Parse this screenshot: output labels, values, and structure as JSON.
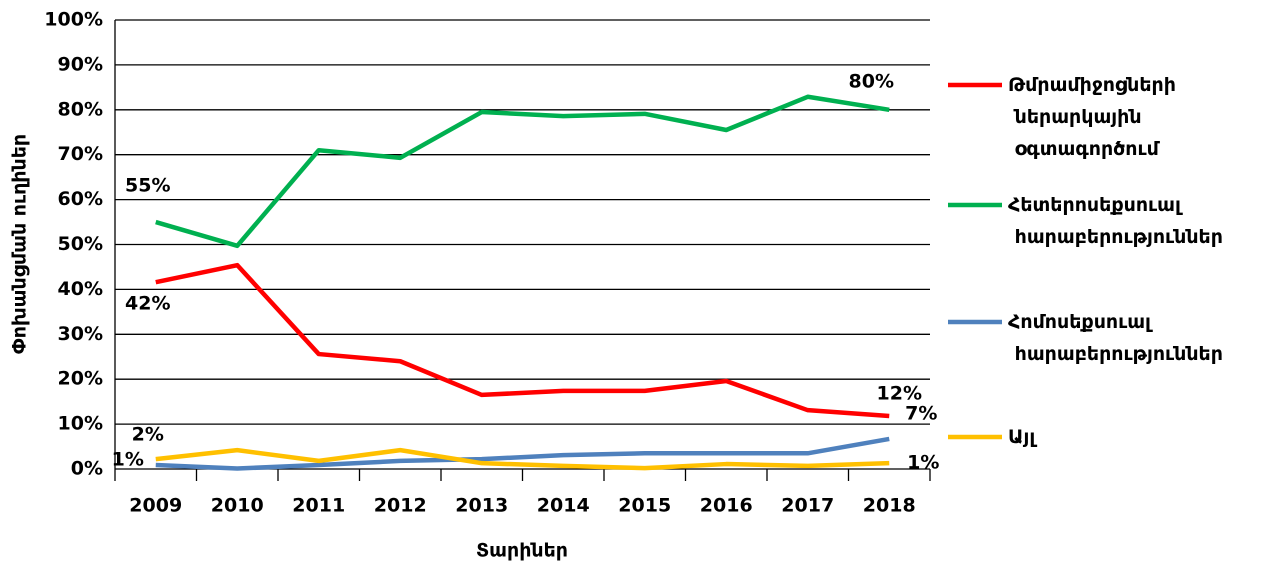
{
  "chart_data": {
    "type": "line",
    "x_label": "Տարիներ",
    "y_label": "Փոխանցման ուղիներ",
    "categories": [
      "2009",
      "2010",
      "2011",
      "2012",
      "2013",
      "2014",
      "2015",
      "2016",
      "2017",
      "2018"
    ],
    "series": [
      {
        "name": "Թմրամիջոցների ներարկային օգտագործում",
        "color": "#ff0000",
        "values": [
          41.6,
          45.4,
          25.6,
          24,
          16.5,
          17.4,
          17.4,
          19.6,
          13.1,
          11.8
        ],
        "value_labels": [
          "42%",
          null,
          null,
          null,
          null,
          null,
          null,
          null,
          null,
          "12%"
        ]
      },
      {
        "name": "Հետերոսեքսուալ հարաբերություններ",
        "color": "#00b050",
        "values": [
          55,
          49.7,
          71,
          69.3,
          79.5,
          78.6,
          79.1,
          75.5,
          82.9,
          80
        ],
        "value_labels": [
          "55%",
          null,
          null,
          null,
          null,
          null,
          null,
          null,
          null,
          "80%"
        ]
      },
      {
        "name": "Հոմոսեքսուալ հարաբերություններ",
        "color": "#4f81bd",
        "values": [
          0.9,
          0.1,
          0.9,
          1.8,
          2.2,
          3.1,
          3.5,
          3.5,
          3.5,
          6.7
        ],
        "value_labels": [
          "1%",
          null,
          null,
          null,
          null,
          null,
          null,
          null,
          null,
          "7%"
        ]
      },
      {
        "name": "Այլ",
        "color": "#ffc000",
        "values": [
          2.2,
          4.2,
          1.8,
          4.2,
          1.3,
          0.7,
          0.2,
          1.1,
          0.7,
          1.3
        ],
        "value_labels": [
          "2%",
          null,
          null,
          null,
          null,
          null,
          null,
          null,
          null,
          "1%"
        ]
      }
    ],
    "ylim": [
      0,
      100
    ],
    "yticks": [
      {
        "value": 0,
        "label": "0%"
      },
      {
        "value": 10,
        "label": "10%"
      },
      {
        "value": 20,
        "label": "20%"
      },
      {
        "value": 30,
        "label": "30%"
      },
      {
        "value": 40,
        "label": "40%"
      },
      {
        "value": 50,
        "label": "50%"
      },
      {
        "value": 60,
        "label": "60%"
      },
      {
        "value": 70,
        "label": "70%"
      },
      {
        "value": 80,
        "label": "80%"
      },
      {
        "value": 90,
        "label": "90%"
      },
      {
        "value": 100,
        "label": "100%"
      }
    ],
    "grid": true,
    "legend": "right"
  }
}
